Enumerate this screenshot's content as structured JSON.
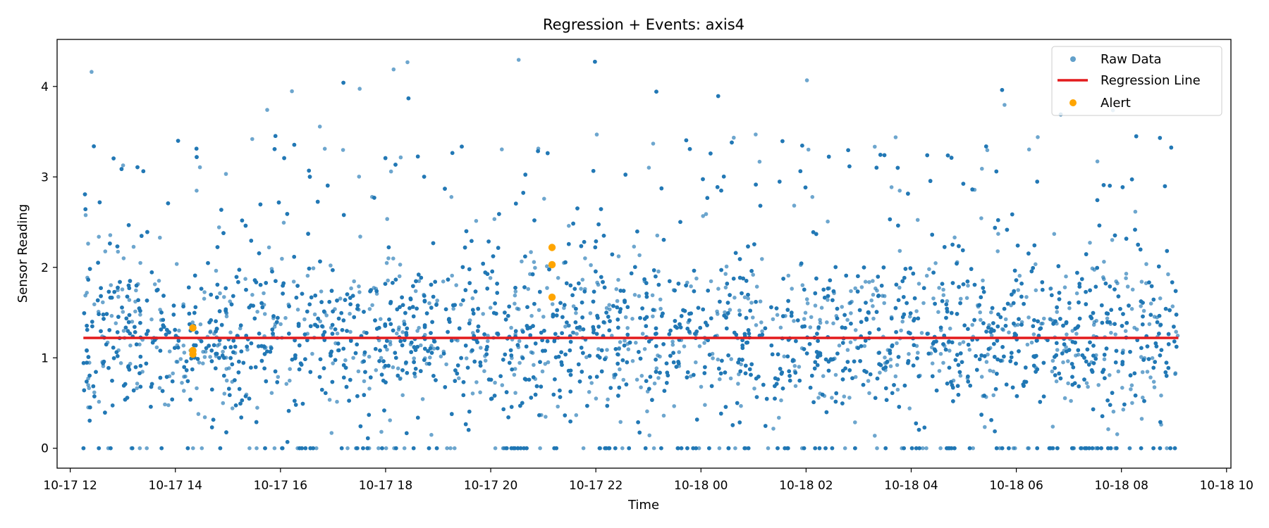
{
  "chart_data": {
    "type": "scatter",
    "title": "Regression + Events: axis4",
    "xlabel": "Time",
    "ylabel": "Sensor Reading",
    "x_axis_kind": "datetime",
    "xlim": [
      "2025-10-17T11:45:00",
      "2025-10-18T10:05:00"
    ],
    "ylim": [
      -0.22,
      4.52
    ],
    "x_ticks": [
      {
        "value": "2025-10-17T12:00:00",
        "label": "10-17 12"
      },
      {
        "value": "2025-10-17T14:00:00",
        "label": "10-17 14"
      },
      {
        "value": "2025-10-17T16:00:00",
        "label": "10-17 16"
      },
      {
        "value": "2025-10-17T18:00:00",
        "label": "10-17 18"
      },
      {
        "value": "2025-10-17T20:00:00",
        "label": "10-17 20"
      },
      {
        "value": "2025-10-17T22:00:00",
        "label": "10-17 22"
      },
      {
        "value": "2025-10-18T00:00:00",
        "label": "10-18 00"
      },
      {
        "value": "2025-10-18T02:00:00",
        "label": "10-18 02"
      },
      {
        "value": "2025-10-18T04:00:00",
        "label": "10-18 04"
      },
      {
        "value": "2025-10-18T06:00:00",
        "label": "10-18 06"
      },
      {
        "value": "2025-10-18T08:00:00",
        "label": "10-18 08"
      },
      {
        "value": "2025-10-18T10:00:00",
        "label": "10-18 10"
      }
    ],
    "y_ticks": [
      {
        "value": 0,
        "label": "0"
      },
      {
        "value": 1,
        "label": "1"
      },
      {
        "value": 2,
        "label": "2"
      },
      {
        "value": 3,
        "label": "3"
      },
      {
        "value": 4,
        "label": "4"
      }
    ],
    "grid": false,
    "legend_position": "top-right",
    "series": [
      {
        "name": "Raw Data",
        "kind": "scatter",
        "color": "#1f77b4",
        "x_range": [
          "2025-10-17T12:15:00",
          "2025-10-18T09:05:00"
        ],
        "y_range": [
          0,
          4.32
        ],
        "note_values": "dense cloud of thousands of readings, mostly between 0 and 2.5"
      },
      {
        "name": "Regression Line",
        "kind": "line",
        "color": "#e31a1c",
        "x": [
          "2025-10-17T12:15:00",
          "2025-10-18T09:05:00"
        ],
        "y": [
          1.22,
          1.22
        ]
      },
      {
        "name": "Alert",
        "kind": "scatter",
        "color": "#ffa500",
        "x": [
          "2025-10-17T14:20:00",
          "2025-10-17T14:20:00",
          "2025-10-17T14:20:00",
          "2025-10-17T21:10:00",
          "2025-10-17T21:10:00",
          "2025-10-17T21:10:00"
        ],
        "y": [
          1.33,
          1.08,
          1.04,
          2.22,
          2.03,
          1.67
        ]
      }
    ]
  }
}
